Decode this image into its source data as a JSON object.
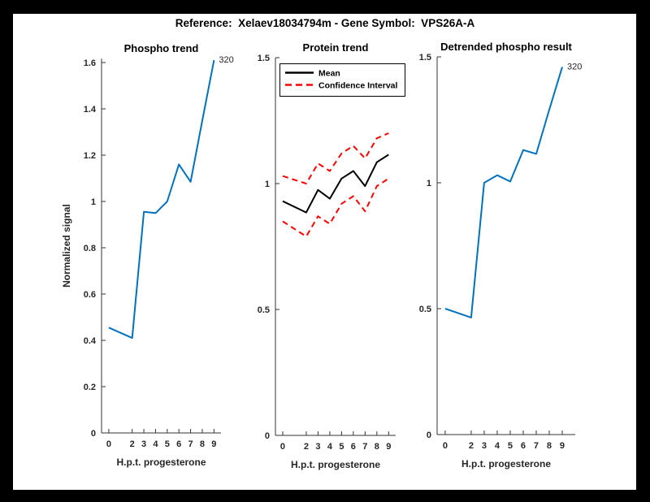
{
  "figure": {
    "title": "Reference:  Xelaev18034794m - Gene Symbol:  VPS26A-A"
  },
  "colors": {
    "page_bg": "#000000",
    "figure_bg": "#FFFFFF",
    "line_blue": "#0072BD",
    "ci_red": "#FF0000",
    "mean_black": "#000000",
    "axis_gray": "#333333",
    "text_gray": "#262626"
  },
  "chart_data": [
    {
      "type": "line",
      "title": "Phospho trend",
      "xlabel": "H.p.t. progesterone",
      "ylabel": "Normalized signal",
      "x": [
        0,
        2,
        3,
        4,
        5,
        6,
        7,
        8,
        9
      ],
      "xtick_labels": [
        "0",
        "2",
        "3",
        "4",
        "5",
        "6",
        "7",
        "8",
        "9"
      ],
      "yticks": [
        0,
        0.2,
        0.4,
        0.6,
        0.8,
        1,
        1.2,
        1.4,
        1.6
      ],
      "ytick_labels": [
        "0",
        "0.2",
        "0.4",
        "0.6",
        "0.8",
        "1",
        "1.2",
        "1.4",
        "1.6"
      ],
      "ylim": [
        0,
        1.617
      ],
      "xlim": [
        -0.62,
        9.6
      ],
      "grid": false,
      "series": [
        {
          "name": "phospho",
          "color": "line_blue",
          "dash": null,
          "values": [
            0.455,
            0.41,
            0.955,
            0.95,
            1.0,
            1.16,
            1.085,
            1.35,
            1.61
          ]
        }
      ],
      "annotation": "320",
      "legend": null
    },
    {
      "type": "line",
      "title": "Protein trend",
      "xlabel": "H.p.t. progesterone",
      "ylabel": "",
      "x": [
        0,
        2,
        3,
        4,
        5,
        6,
        7,
        8,
        9
      ],
      "xtick_labels": [
        "0",
        "2",
        "3",
        "4",
        "5",
        "6",
        "7",
        "8",
        "9"
      ],
      "yticks": [
        0,
        0.5,
        1,
        1.5
      ],
      "ytick_labels": [
        "0",
        "0.5",
        "1",
        "1.5"
      ],
      "ylim": [
        0,
        1.5
      ],
      "xlim": [
        -0.62,
        9.6
      ],
      "grid": false,
      "series": [
        {
          "name": "mean",
          "color": "mean_black",
          "dash": null,
          "values": [
            0.93,
            0.885,
            0.975,
            0.94,
            1.02,
            1.05,
            0.99,
            1.085,
            1.115
          ]
        },
        {
          "name": "ci-upper",
          "color": "ci_red",
          "dash": "7 5",
          "values": [
            1.03,
            1.0,
            1.08,
            1.05,
            1.12,
            1.15,
            1.1,
            1.18,
            1.2
          ]
        },
        {
          "name": "ci-lower",
          "color": "ci_red",
          "dash": "7 5",
          "values": [
            0.85,
            0.79,
            0.87,
            0.84,
            0.92,
            0.95,
            0.89,
            0.99,
            1.02
          ]
        }
      ],
      "annotation": null,
      "legend": {
        "position": "northwest",
        "entries": [
          {
            "label": "Mean",
            "color": "mean_black",
            "dash": null
          },
          {
            "label": "Confidence Interval",
            "color": "ci_red",
            "dash": "8 5"
          }
        ]
      }
    },
    {
      "type": "line",
      "title": "Detrended phospho result",
      "xlabel": "H.p.t. progesterone",
      "ylabel": "",
      "x": [
        0,
        2,
        3,
        4,
        5,
        6,
        7,
        8,
        9
      ],
      "xtick_labels": [
        "0",
        "2",
        "3",
        "4",
        "5",
        "6",
        "7",
        "8",
        "9"
      ],
      "yticks": [
        0,
        0.5,
        1,
        1.5
      ],
      "ytick_labels": [
        "0",
        "0.5",
        "1",
        "1.5"
      ],
      "ylim": [
        0,
        1.5
      ],
      "xlim": [
        -0.62,
        10.0
      ],
      "grid": false,
      "series": [
        {
          "name": "detrended",
          "color": "line_blue",
          "dash": null,
          "values": [
            0.5,
            0.465,
            1.0,
            1.03,
            1.005,
            1.13,
            1.115,
            1.29,
            1.46
          ]
        }
      ],
      "annotation": "320",
      "legend": null
    }
  ]
}
